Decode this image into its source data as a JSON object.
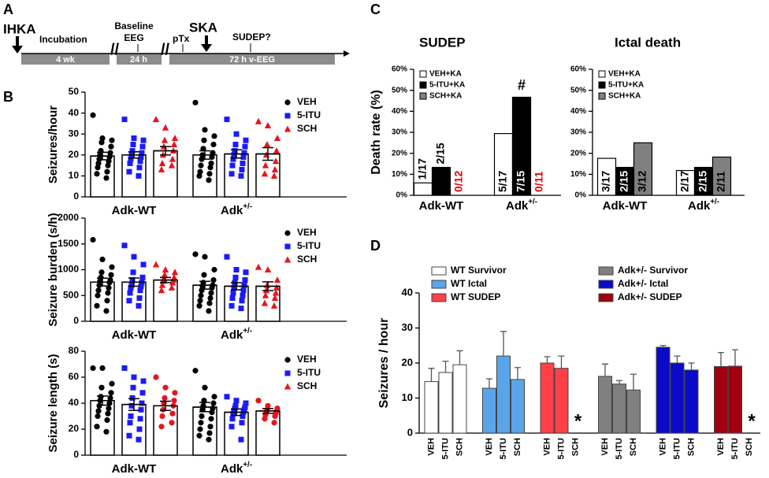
{
  "panel_labels": [
    "A",
    "B",
    "C",
    "D"
  ],
  "timeline": {
    "ihka": "IHKA",
    "incubation": "Incubation",
    "seg1": "4 wk",
    "baseline": [
      "Baseline",
      "EEG"
    ],
    "seg2": "24 h",
    "ptx": "pTx",
    "ska": "SKA",
    "sudep": "SUDEP?",
    "seg3": "72 h v-EEG"
  },
  "chart_data": [
    {
      "type": "dot_bar",
      "ylabel": "Seizures/hour",
      "ylim": [
        0,
        50
      ],
      "yticks": [
        0,
        10,
        20,
        30,
        40,
        50
      ],
      "groups": [
        {
          "text": "Adk-WT"
        },
        {
          "text": "Adk",
          "sup": "+/-"
        }
      ],
      "series": [
        {
          "name": "VEH",
          "color": "#000000",
          "marker": "circle",
          "values": [
            19.5,
            20
          ],
          "errors": [
            1.8,
            2
          ],
          "points": [
            [
              39,
              28,
              27,
              26,
              24,
              22,
              21,
              20,
              19,
              18,
              17,
              16,
              15,
              14,
              12,
              11,
              9
            ],
            [
              45,
              32,
              29,
              27,
              25,
              23,
              21,
              20,
              19,
              18,
              16,
              15,
              14,
              12,
              11,
              10,
              8
            ]
          ]
        },
        {
          "name": "5-ITU",
          "color": "#1a1aff",
          "marker": "square",
          "values": [
            20,
            20.5
          ],
          "errors": [
            1.5,
            2
          ],
          "points": [
            [
              37,
              28,
              27,
              25,
              24,
              22,
              21,
              20,
              19,
              18,
              17,
              16,
              14,
              12,
              10
            ],
            [
              37,
              30,
              27,
              25,
              24,
              22,
              21,
              20,
              19,
              18,
              16,
              15,
              13,
              11,
              10
            ]
          ]
        },
        {
          "name": "SCH",
          "color": "#e8141e",
          "marker": "triangle",
          "values": [
            22,
            20.5
          ],
          "errors": [
            2,
            3
          ],
          "points": [
            [
              37,
              33,
              28,
              27,
              25,
              24,
              22,
              20,
              18,
              16,
              15,
              13
            ],
            [
              36,
              34,
              28,
              25,
              22,
              20,
              17,
              15,
              13,
              11,
              10
            ]
          ]
        }
      ]
    },
    {
      "type": "dot_bar",
      "ylabel": "Seizure burden (s/h)",
      "ylim": [
        0,
        2000
      ],
      "yticks": [
        0,
        500,
        1000,
        1500,
        2000
      ],
      "groups": [
        {
          "text": "Adk-WT"
        },
        {
          "text": "Adk",
          "sup": "+/-"
        }
      ],
      "series": [
        {
          "name": "VEH",
          "color": "#000000",
          "marker": "circle",
          "values": [
            760,
            700
          ],
          "errors": [
            75,
            75
          ],
          "points": [
            [
              1580,
              1200,
              1050,
              950,
              900,
              850,
              800,
              780,
              750,
              700,
              650,
              600,
              550,
              500,
              400,
              300,
              200
            ],
            [
              1300,
              1250,
              1000,
              900,
              800,
              750,
              700,
              680,
              650,
              600,
              550,
              500,
              450,
              400,
              350,
              300,
              200
            ]
          ]
        },
        {
          "name": "5-ITU",
          "color": "#1a1aff",
          "marker": "square",
          "values": [
            760,
            680
          ],
          "errors": [
            80,
            70
          ],
          "points": [
            [
              1470,
              1250,
              1100,
              950,
              850,
              800,
              750,
              700,
              680,
              650,
              600,
              550,
              450,
              400,
              300
            ],
            [
              1250,
              1000,
              950,
              850,
              800,
              750,
              700,
              650,
              600,
              550,
              500,
              450,
              400,
              300,
              250
            ]
          ]
        },
        {
          "name": "SCH",
          "color": "#e8141e",
          "marker": "triangle",
          "values": [
            800,
            680
          ],
          "errors": [
            50,
            85
          ],
          "points": [
            [
              1100,
              1000,
              950,
              900,
              850,
              820,
              800,
              780,
              750,
              700,
              650,
              600
            ],
            [
              1050,
              1000,
              800,
              700,
              650,
              600,
              550,
              500,
              450,
              350,
              300
            ]
          ]
        }
      ]
    },
    {
      "type": "dot_bar",
      "ylabel": "Seizure length (s)",
      "ylim": [
        0,
        80
      ],
      "yticks": [
        0,
        20,
        40,
        60,
        80
      ],
      "groups": [
        {
          "text": "Adk-WT"
        },
        {
          "text": "Adk",
          "sup": "+/-"
        }
      ],
      "series": [
        {
          "name": "VEH",
          "color": "#000000",
          "marker": "circle",
          "values": [
            42,
            37
          ],
          "errors": [
            3.5,
            3.5
          ],
          "points": [
            [
              67,
              67,
              55,
              52,
              48,
              45,
              44,
              42,
              40,
              38,
              36,
              34,
              32,
              30,
              27,
              22,
              18
            ],
            [
              65,
              52,
              45,
              42,
              40,
              38,
              36,
              35,
              33,
              30,
              28,
              25,
              22,
              20,
              17,
              15,
              12
            ]
          ]
        },
        {
          "name": "5-ITU",
          "color": "#1a1aff",
          "marker": "square",
          "values": [
            39,
            33
          ],
          "errors": [
            4.5,
            2.5
          ],
          "points": [
            [
              67,
              60,
              57,
              52,
              48,
              44,
              40,
              38,
              35,
              30,
              28,
              25,
              20,
              15,
              12
            ],
            [
              45,
              42,
              40,
              38,
              37,
              36,
              35,
              34,
              33,
              32,
              30,
              28,
              25,
              22,
              12
            ]
          ]
        },
        {
          "name": "SCH",
          "color": "#e8141e",
          "marker": "square_none",
          "values": [
            38,
            34
          ],
          "errors": [
            3.5,
            1.8
          ],
          "points": [
            [
              60,
              52,
              48,
              44,
              42,
              40,
              38,
              35,
              32,
              30,
              25,
              22
            ],
            [
              42,
              38,
              36,
              35,
              34,
              33,
              32,
              31,
              30,
              28,
              25
            ]
          ]
        }
      ]
    },
    {
      "type": "fraction_bar",
      "title": "SUDEP",
      "ylabel": "Death rate (%)",
      "ylim": [
        0,
        60
      ],
      "yticks": [
        {
          "value": 0,
          "label": "0%"
        },
        {
          "value": 10,
          "label": "10%"
        },
        {
          "value": 20,
          "label": "20%"
        },
        {
          "value": 30,
          "label": "30%"
        },
        {
          "value": 40,
          "label": "40%"
        },
        {
          "value": 50,
          "label": "50%"
        },
        {
          "value": 60,
          "label": "60%"
        }
      ],
      "groups": [
        {
          "text": "Adk-WT"
        },
        {
          "text": "Adk",
          "sup": "+/-"
        }
      ],
      "zero_label_color": "#e8000b",
      "series": [
        {
          "name": "VEH+KA",
          "color": "#ffffff",
          "values": [
            5.9,
            29.4
          ],
          "value_labels": [
            "1/17",
            "5/17"
          ],
          "label_positions": [
            "above",
            "inside"
          ]
        },
        {
          "name": "5-ITU+KA",
          "color": "#000000",
          "values": [
            13.3,
            46.7
          ],
          "value_labels": [
            "2/15",
            "7/15"
          ],
          "label_positions": [
            "above",
            "inside"
          ],
          "annotations": [
            null,
            "#"
          ]
        },
        {
          "name": "SCH+KA",
          "color": "#808080",
          "values": [
            0,
            0
          ],
          "value_labels": [
            "0/12",
            "0/11"
          ],
          "label_positions": [
            "above",
            "above"
          ]
        }
      ]
    },
    {
      "type": "fraction_bar",
      "title": "Ictal death",
      "ylim": [
        0,
        60
      ],
      "yticks": [
        {
          "value": 0,
          "label": "0%"
        },
        {
          "value": 10,
          "label": "10%"
        },
        {
          "value": 20,
          "label": "20%"
        },
        {
          "value": 30,
          "label": "30%"
        },
        {
          "value": 40,
          "label": "40%"
        },
        {
          "value": 50,
          "label": "50%"
        },
        {
          "value": 60,
          "label": "60%"
        }
      ],
      "groups": [
        {
          "text": "Adk-WT"
        },
        {
          "text": "Adk",
          "sup": "+/-"
        }
      ],
      "series": [
        {
          "name": "VEH+KA",
          "color": "#ffffff",
          "values": [
            17.6,
            11.8
          ],
          "value_labels": [
            "3/17",
            "2/17"
          ],
          "label_positions": [
            "inside",
            "inside"
          ]
        },
        {
          "name": "5-ITU+KA",
          "color": "#000000",
          "values": [
            13.3,
            13.3
          ],
          "value_labels": [
            "2/15",
            "2/15"
          ],
          "label_positions": [
            "inside",
            "inside"
          ]
        },
        {
          "name": "SCH+KA",
          "color": "#808080",
          "values": [
            25,
            18.2
          ],
          "value_labels": [
            "3/12",
            "2/11"
          ],
          "label_positions": [
            "inside",
            "inside"
          ]
        }
      ]
    },
    {
      "type": "error_bar",
      "ylabel": "Seizures / hour",
      "ylim": [
        0,
        40
      ],
      "yticks": [
        0,
        10,
        20,
        30,
        40
      ],
      "categories": [
        "VEH",
        "5-ITU",
        "SCH"
      ],
      "series": [
        {
          "name": "WT Survivor",
          "color": "#ffffff",
          "values": [
            14.7,
            17.3,
            19.5
          ],
          "errors": [
            3.8,
            3.2,
            4
          ]
        },
        {
          "name": "WT Ictal",
          "color": "#5aa5ea",
          "values": [
            12.8,
            22,
            15.3
          ],
          "errors": [
            2.7,
            7,
            3.4
          ]
        },
        {
          "name": "WT SUDEP",
          "color": "#ff4048",
          "values": [
            20,
            18.5,
            null
          ],
          "errors": [
            1.8,
            3.5,
            null
          ],
          "annotations": [
            null,
            null,
            "*"
          ]
        },
        {
          "name": "Adk+/- Survivor",
          "color": "#808080",
          "values": [
            16.2,
            14,
            12.3
          ],
          "errors": [
            3.5,
            1,
            4.5
          ]
        },
        {
          "name": "Adk+/- Ictal",
          "color": "#0a0ac8",
          "values": [
            24.5,
            20,
            18
          ],
          "errors": [
            0.5,
            2,
            2
          ]
        },
        {
          "name": "Adk+/- SUDEP",
          "color": "#a0000f",
          "values": [
            19,
            19.1,
            null
          ],
          "errors": [
            4,
            4.7,
            null
          ],
          "annotations": [
            null,
            null,
            "*"
          ]
        }
      ]
    }
  ]
}
